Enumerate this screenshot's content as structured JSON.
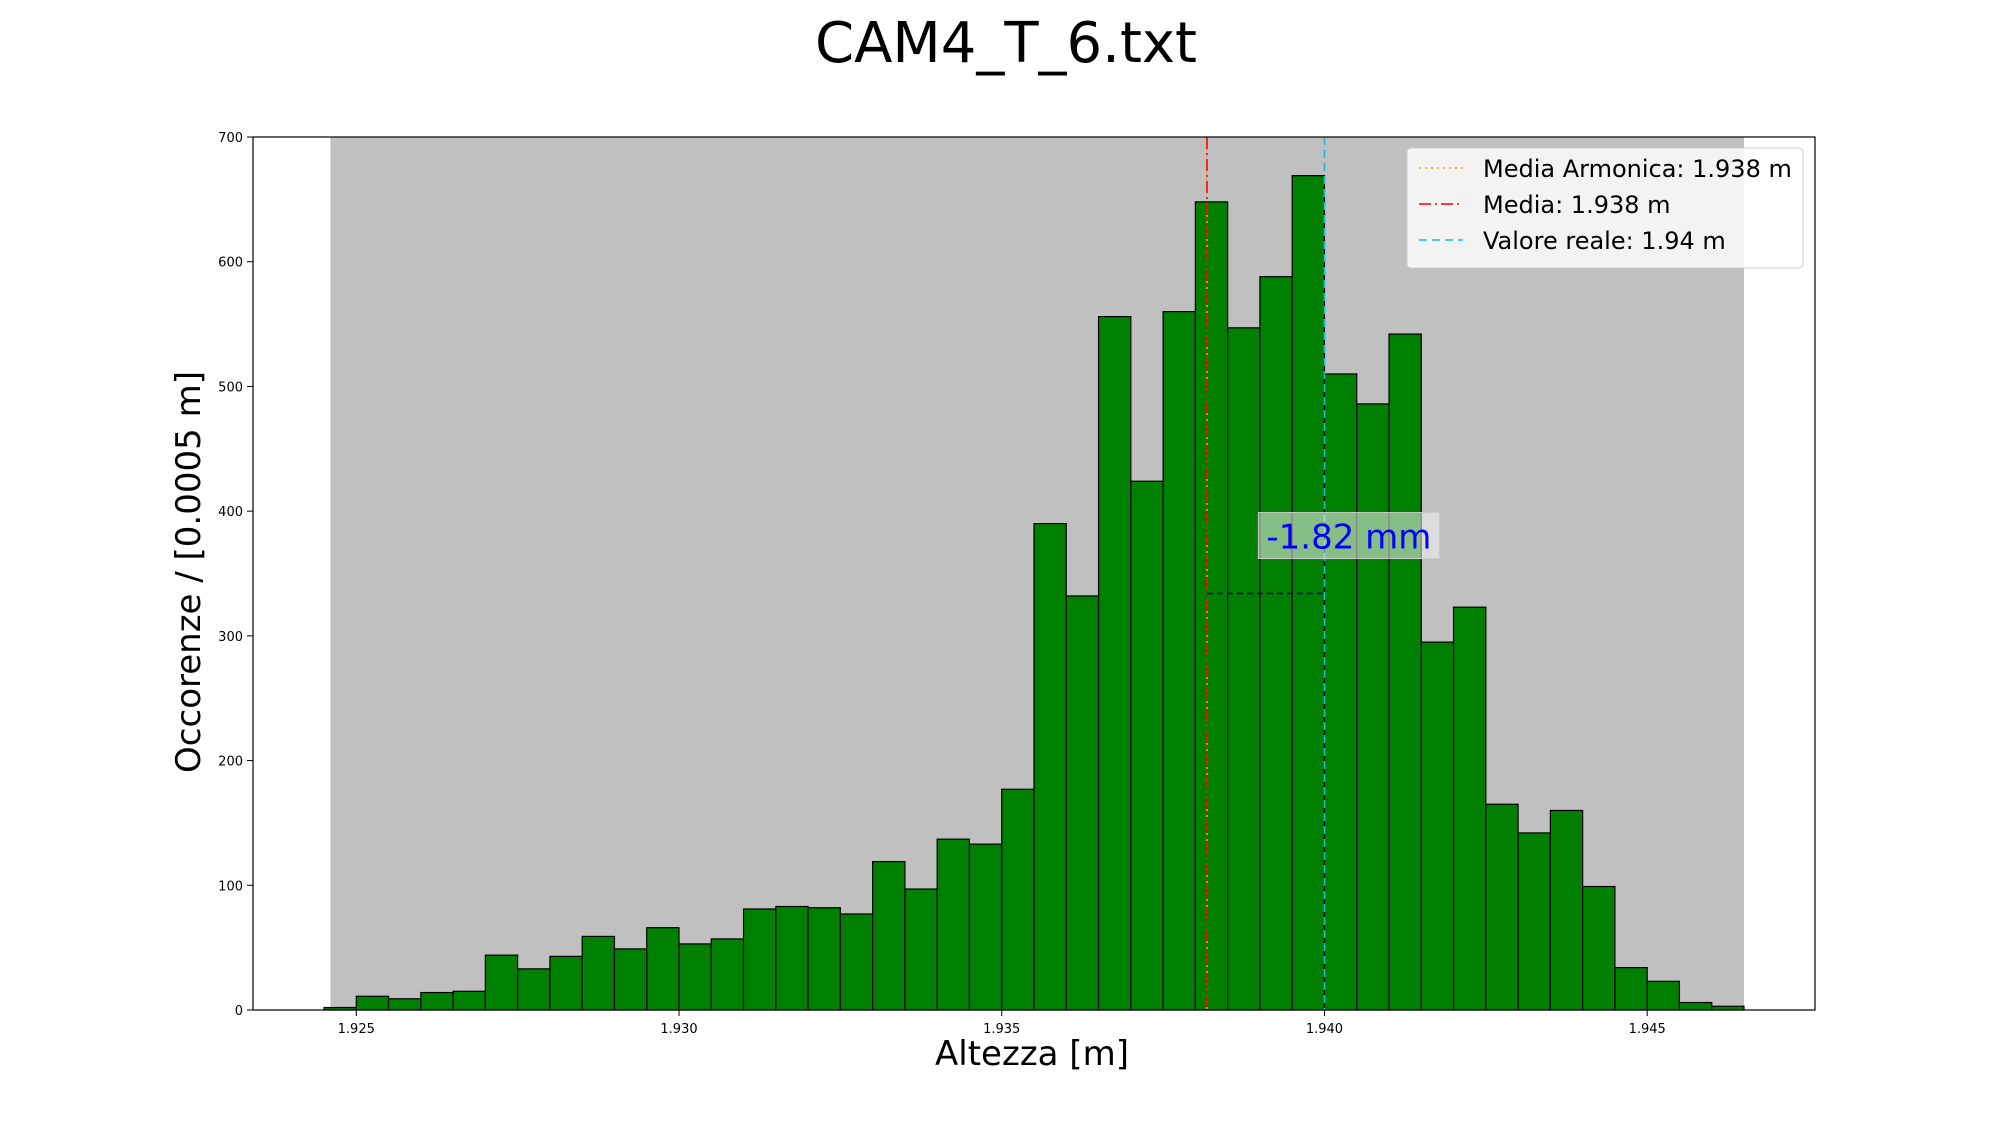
{
  "chart_data": {
    "type": "bar",
    "title": "CAM4_T_6.txt",
    "xlabel": "Altezza [m]",
    "ylabel": "Occorenze / [0.0005 m]",
    "xlim": [
      1.9234,
      1.9476
    ],
    "ylim": [
      0,
      700
    ],
    "xticks": [
      1.925,
      1.93,
      1.935,
      1.94,
      1.945
    ],
    "xtick_labels": [
      "1.925",
      "1.930",
      "1.935",
      "1.940",
      "1.945"
    ],
    "yticks": [
      0,
      100,
      200,
      300,
      400,
      500,
      600,
      700
    ],
    "ytick_labels": [
      "0",
      "100",
      "200",
      "300",
      "400",
      "500",
      "600",
      "700"
    ],
    "bin_start": 1.9245,
    "bin_width": 0.0005,
    "values": [
      2,
      11,
      9,
      14,
      15,
      44,
      33,
      43,
      59,
      49,
      66,
      53,
      57,
      81,
      83,
      82,
      77,
      119,
      97,
      137,
      133,
      177,
      390,
      332,
      556,
      424,
      560,
      648,
      547,
      588,
      669,
      510,
      486,
      542,
      295,
      323,
      165,
      142,
      160,
      99,
      34,
      23,
      6,
      3
    ],
    "bar_color": "#008000",
    "bar_edge_color": "#000000",
    "background_band": {
      "x": [
        1.9246,
        1.9465
      ],
      "color": "#c0c0c0"
    },
    "lines": [
      {
        "name": "Media Armonica: 1.938 m",
        "x": 1.93818,
        "color": "#ffa500",
        "style": "dotted"
      },
      {
        "name": "Media: 1.938 m",
        "x": 1.93818,
        "color": "#ff0000",
        "style": "dashdot"
      },
      {
        "name": "Valore reale: 1.94 m",
        "x": 1.94,
        "color": "#17becf",
        "style": "dashed"
      }
    ],
    "annotation": {
      "text": "-1.82 mm",
      "text_color": "#0000ff",
      "arrow_from": 1.93818,
      "arrow_to": 1.94,
      "y": 334,
      "text_x": 1.9391,
      "text_y": 370,
      "line_color": "#00008b"
    },
    "legend": {
      "placement": "top-right"
    },
    "grid": false
  }
}
